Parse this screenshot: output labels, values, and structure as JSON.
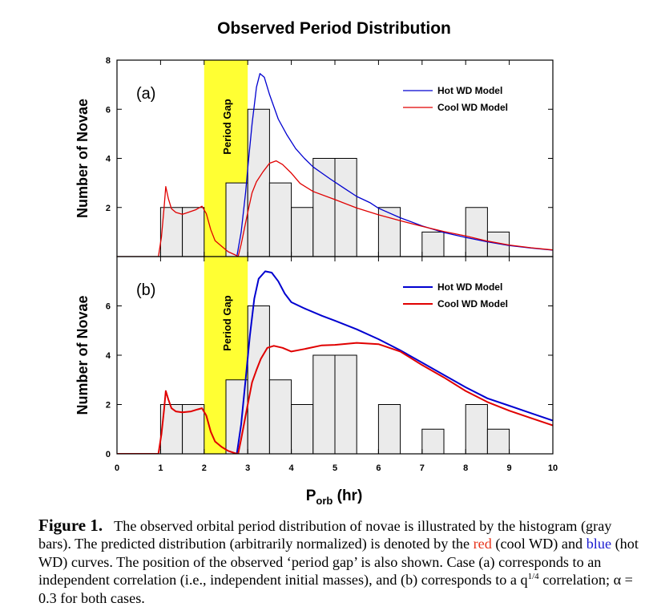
{
  "figure_title": "Observed Period Distribution",
  "x_axis_label": "P",
  "x_axis_label_sub": "orb",
  "x_axis_label_unit": " (hr)",
  "colors": {
    "hot": "#0000d0",
    "cool": "#e00000",
    "gap": "#ffff33",
    "bar": "#ebebeb"
  },
  "chart_data": [
    {
      "type": "bar",
      "panel_label": "(a)",
      "ylabel": "Number of Novae",
      "gap_label": "Period Gap",
      "period_gap": [
        2.0,
        3.0
      ],
      "xlim": [
        0,
        10
      ],
      "ylim": [
        0,
        8
      ],
      "xticks": [
        0,
        1,
        2,
        3,
        4,
        5,
        6,
        7,
        8,
        9,
        10
      ],
      "yticks": [
        2,
        4,
        6,
        8
      ],
      "bin_width": 0.5,
      "bins": [
        {
          "start": 1.0,
          "count": 2
        },
        {
          "start": 1.5,
          "count": 2
        },
        {
          "start": 2.5,
          "count": 3
        },
        {
          "start": 3.0,
          "count": 6
        },
        {
          "start": 3.5,
          "count": 3
        },
        {
          "start": 4.0,
          "count": 2
        },
        {
          "start": 4.5,
          "count": 4
        },
        {
          "start": 5.0,
          "count": 4
        },
        {
          "start": 6.0,
          "count": 2
        },
        {
          "start": 7.0,
          "count": 1
        },
        {
          "start": 8.0,
          "count": 2
        },
        {
          "start": 8.5,
          "count": 1
        }
      ],
      "series": [
        {
          "name": "Hot WD Model",
          "color": "#0000d0",
          "stroke_width": 1.3,
          "points": [
            [
              2.75,
              0
            ],
            [
              2.85,
              1.0
            ],
            [
              2.95,
              2.6
            ],
            [
              3.0,
              3.6
            ],
            [
              3.1,
              5.4
            ],
            [
              3.2,
              6.9
            ],
            [
              3.28,
              7.45
            ],
            [
              3.38,
              7.3
            ],
            [
              3.5,
              6.6
            ],
            [
              3.7,
              5.6
            ],
            [
              3.9,
              4.95
            ],
            [
              4.1,
              4.4
            ],
            [
              4.3,
              4.0
            ],
            [
              4.5,
              3.65
            ],
            [
              4.7,
              3.4
            ],
            [
              4.9,
              3.15
            ],
            [
              5.2,
              2.8
            ],
            [
              5.5,
              2.45
            ],
            [
              5.8,
              2.2
            ],
            [
              6.0,
              1.97
            ],
            [
              6.5,
              1.58
            ],
            [
              7.0,
              1.25
            ],
            [
              7.5,
              0.98
            ],
            [
              8.0,
              0.78
            ],
            [
              8.5,
              0.6
            ],
            [
              9.0,
              0.45
            ],
            [
              9.5,
              0.35
            ],
            [
              10,
              0.26
            ]
          ]
        },
        {
          "name": "Cool WD Model",
          "color": "#e00000",
          "stroke_width": 1.3,
          "points": [
            [
              0,
              0
            ],
            [
              0.95,
              0
            ],
            [
              1.02,
              0.8
            ],
            [
              1.08,
              2.0
            ],
            [
              1.12,
              2.85
            ],
            [
              1.18,
              2.35
            ],
            [
              1.25,
              1.95
            ],
            [
              1.35,
              1.8
            ],
            [
              1.5,
              1.72
            ],
            [
              1.6,
              1.78
            ],
            [
              1.8,
              1.9
            ],
            [
              1.95,
              2.05
            ],
            [
              2.05,
              1.75
            ],
            [
              2.15,
              1.1
            ],
            [
              2.25,
              0.65
            ],
            [
              2.4,
              0.42
            ],
            [
              2.55,
              0.2
            ],
            [
              2.7,
              0.08
            ],
            [
              2.78,
              0
            ],
            [
              2.85,
              0.5
            ],
            [
              3.0,
              1.8
            ],
            [
              3.1,
              2.6
            ],
            [
              3.2,
              3.05
            ],
            [
              3.35,
              3.45
            ],
            [
              3.5,
              3.8
            ],
            [
              3.65,
              3.9
            ],
            [
              3.8,
              3.75
            ],
            [
              4.0,
              3.4
            ],
            [
              4.2,
              2.98
            ],
            [
              4.5,
              2.65
            ],
            [
              5.0,
              2.32
            ],
            [
              5.5,
              1.98
            ],
            [
              6.0,
              1.7
            ],
            [
              6.5,
              1.46
            ],
            [
              7.0,
              1.23
            ],
            [
              7.5,
              1.02
            ],
            [
              8.0,
              0.84
            ],
            [
              8.5,
              0.63
            ],
            [
              9.0,
              0.47
            ],
            [
              9.5,
              0.36
            ],
            [
              10,
              0.27
            ]
          ]
        }
      ]
    },
    {
      "type": "bar",
      "panel_label": "(b)",
      "ylabel": "Number of Novae",
      "gap_label": "Period Gap",
      "period_gap": [
        2.0,
        3.0
      ],
      "xlim": [
        0,
        10
      ],
      "ylim": [
        0,
        8
      ],
      "xticks": [
        0,
        1,
        2,
        3,
        4,
        5,
        6,
        7,
        8,
        9,
        10
      ],
      "yticks": [
        0,
        2,
        4,
        6
      ],
      "bin_width": 0.5,
      "bins": [
        {
          "start": 1.0,
          "count": 2
        },
        {
          "start": 1.5,
          "count": 2
        },
        {
          "start": 2.5,
          "count": 3
        },
        {
          "start": 3.0,
          "count": 6
        },
        {
          "start": 3.5,
          "count": 3
        },
        {
          "start": 4.0,
          "count": 2
        },
        {
          "start": 4.5,
          "count": 4
        },
        {
          "start": 5.0,
          "count": 4
        },
        {
          "start": 6.0,
          "count": 2
        },
        {
          "start": 7.0,
          "count": 1
        },
        {
          "start": 8.0,
          "count": 2
        },
        {
          "start": 8.5,
          "count": 1
        }
      ],
      "series": [
        {
          "name": "Hot WD Model",
          "color": "#0000d0",
          "stroke_width": 2,
          "points": [
            [
              2.75,
              0
            ],
            [
              2.85,
              1.2
            ],
            [
              2.95,
              3.0
            ],
            [
              3.05,
              4.8
            ],
            [
              3.15,
              6.3
            ],
            [
              3.25,
              7.1
            ],
            [
              3.4,
              7.4
            ],
            [
              3.55,
              7.35
            ],
            [
              3.7,
              7.0
            ],
            [
              3.85,
              6.5
            ],
            [
              4.0,
              6.15
            ],
            [
              4.3,
              5.9
            ],
            [
              4.7,
              5.6
            ],
            [
              5.0,
              5.4
            ],
            [
              5.5,
              5.05
            ],
            [
              6.0,
              4.65
            ],
            [
              6.5,
              4.2
            ],
            [
              7.0,
              3.7
            ],
            [
              7.5,
              3.2
            ],
            [
              8.0,
              2.7
            ],
            [
              8.5,
              2.25
            ],
            [
              9.0,
              1.95
            ],
            [
              9.5,
              1.65
            ],
            [
              10,
              1.35
            ]
          ]
        },
        {
          "name": "Cool WD Model",
          "color": "#e00000",
          "stroke_width": 2,
          "points": [
            [
              0,
              0
            ],
            [
              0.95,
              0
            ],
            [
              1.02,
              0.8
            ],
            [
              1.08,
              1.8
            ],
            [
              1.12,
              2.55
            ],
            [
              1.18,
              2.2
            ],
            [
              1.25,
              1.85
            ],
            [
              1.35,
              1.72
            ],
            [
              1.5,
              1.68
            ],
            [
              1.7,
              1.72
            ],
            [
              1.85,
              1.8
            ],
            [
              1.95,
              1.85
            ],
            [
              2.05,
              1.55
            ],
            [
              2.15,
              0.9
            ],
            [
              2.25,
              0.5
            ],
            [
              2.4,
              0.28
            ],
            [
              2.55,
              0.12
            ],
            [
              2.7,
              0.03
            ],
            [
              2.78,
              0
            ],
            [
              2.85,
              0.6
            ],
            [
              3.0,
              2.0
            ],
            [
              3.1,
              2.9
            ],
            [
              3.2,
              3.4
            ],
            [
              3.3,
              3.85
            ],
            [
              3.45,
              4.3
            ],
            [
              3.6,
              4.38
            ],
            [
              3.8,
              4.3
            ],
            [
              4.0,
              4.15
            ],
            [
              4.3,
              4.25
            ],
            [
              4.7,
              4.4
            ],
            [
              5.0,
              4.42
            ],
            [
              5.5,
              4.5
            ],
            [
              6.0,
              4.45
            ],
            [
              6.5,
              4.15
            ],
            [
              7.0,
              3.6
            ],
            [
              7.5,
              3.1
            ],
            [
              8.0,
              2.55
            ],
            [
              8.5,
              2.1
            ],
            [
              9.0,
              1.75
            ],
            [
              9.5,
              1.45
            ],
            [
              10,
              1.15
            ]
          ]
        }
      ]
    }
  ],
  "caption": {
    "label": "Figure 1.",
    "part1": "The observed orbital period distribution of novae is illustrated by the histogram (gray bars).  The predicted distribution (arbitrarily normalized) is denoted by the ",
    "red_word": "red",
    "part2": " (cool WD) and ",
    "blue_word": "blue",
    "part3": " (hot WD) curves.  The position of the observed ‘period gap’ is also shown.  Case (a) corresponds to an independent  correlation (i.e., independent initial masses), and (b) corresponds to a q",
    "exponent": "1/4",
    "part4": " correlation; α = 0.3 for both cases."
  }
}
